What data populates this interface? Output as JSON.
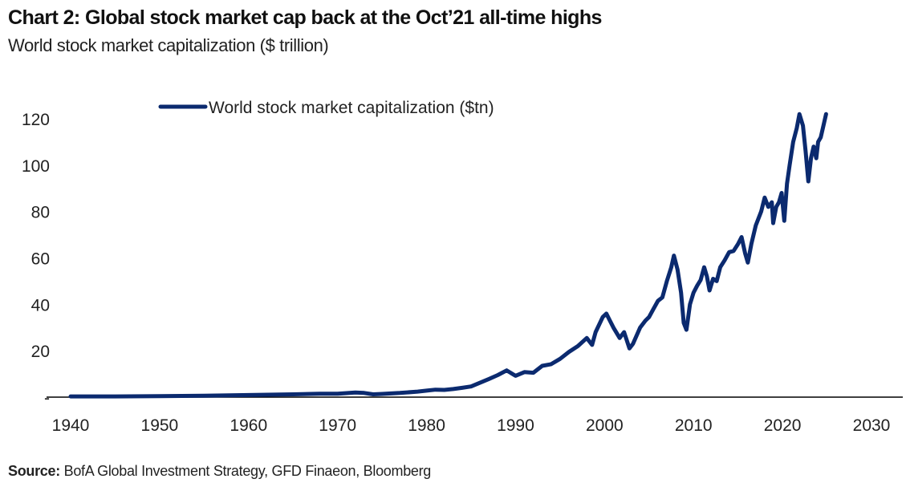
{
  "header": {
    "title": "Chart 2: Global stock market cap back at the Oct’21 all-time highs",
    "subtitle": "World stock market capitalization ($ trillion)"
  },
  "footer": {
    "source_label": "Source:",
    "source_text": " BofA Global Investment Strategy, GFD Finaeon, Bloomberg"
  },
  "chart_data": {
    "type": "line",
    "title": "Chart 2: Global stock market cap back at the Oct’21 all-time highs",
    "subtitle": "World stock market capitalization ($ trillion)",
    "xlabel": "",
    "ylabel": "",
    "xlim": [
      1940,
      2030
    ],
    "ylim": [
      0,
      125
    ],
    "x_ticks": [
      1940,
      1950,
      1960,
      1970,
      1980,
      1990,
      2000,
      2010,
      2020,
      2030
    ],
    "y_ticks": [
      {
        "value": 0,
        "label": "-"
      },
      {
        "value": 20,
        "label": "20"
      },
      {
        "value": 40,
        "label": "40"
      },
      {
        "value": 60,
        "label": "60"
      },
      {
        "value": 80,
        "label": "80"
      },
      {
        "value": 100,
        "label": "100"
      },
      {
        "value": 120,
        "label": "120"
      }
    ],
    "grid": false,
    "legend": {
      "placement": "top-left",
      "entries": [
        "World stock market capitalization ($tn)"
      ]
    },
    "colors": {
      "series": "#0b2a6f",
      "axis": "#000000"
    },
    "series": [
      {
        "name": "World stock market capitalization ($tn)",
        "points": [
          [
            1940,
            0.3
          ],
          [
            1945,
            0.3
          ],
          [
            1950,
            0.4
          ],
          [
            1955,
            0.6
          ],
          [
            1960,
            0.9
          ],
          [
            1965,
            1.2
          ],
          [
            1968,
            1.5
          ],
          [
            1970,
            1.5
          ],
          [
            1972,
            2.0
          ],
          [
            1973,
            1.8
          ],
          [
            1974,
            1.2
          ],
          [
            1975,
            1.4
          ],
          [
            1977,
            1.8
          ],
          [
            1979,
            2.4
          ],
          [
            1980,
            2.8
          ],
          [
            1981,
            3.2
          ],
          [
            1982,
            3.1
          ],
          [
            1983,
            3.5
          ],
          [
            1984,
            4.0
          ],
          [
            1985,
            4.6
          ],
          [
            1986,
            6.2
          ],
          [
            1987,
            7.8
          ],
          [
            1988,
            9.5
          ],
          [
            1989,
            11.5
          ],
          [
            1990,
            9.2
          ],
          [
            1991,
            10.8
          ],
          [
            1992,
            10.5
          ],
          [
            1993,
            13.5
          ],
          [
            1994,
            14.2
          ],
          [
            1995,
            16.5
          ],
          [
            1996,
            19.5
          ],
          [
            1997,
            22.0
          ],
          [
            1998,
            25.5
          ],
          [
            1998.6,
            22.5
          ],
          [
            1999,
            28.0
          ],
          [
            1999.8,
            34.5
          ],
          [
            2000.2,
            36.0
          ],
          [
            2000.6,
            33.0
          ],
          [
            2001,
            30.0
          ],
          [
            2001.7,
            25.5
          ],
          [
            2002.2,
            28.0
          ],
          [
            2002.8,
            21.0
          ],
          [
            2003.2,
            23.0
          ],
          [
            2004,
            30.0
          ],
          [
            2004.6,
            33.0
          ],
          [
            2005,
            34.5
          ],
          [
            2005.5,
            38.0
          ],
          [
            2006,
            41.5
          ],
          [
            2006.5,
            43.0
          ],
          [
            2007,
            50.0
          ],
          [
            2007.5,
            56.0
          ],
          [
            2007.8,
            61.0
          ],
          [
            2008.2,
            55.0
          ],
          [
            2008.6,
            45.0
          ],
          [
            2008.9,
            32.0
          ],
          [
            2009.2,
            29.0
          ],
          [
            2009.6,
            40.0
          ],
          [
            2010,
            45.0
          ],
          [
            2010.4,
            48.0
          ],
          [
            2010.8,
            50.5
          ],
          [
            2011.2,
            56.0
          ],
          [
            2011.5,
            52.0
          ],
          [
            2011.8,
            46.0
          ],
          [
            2012.2,
            51.0
          ],
          [
            2012.6,
            50.0
          ],
          [
            2013,
            56.0
          ],
          [
            2013.5,
            59.0
          ],
          [
            2014,
            62.5
          ],
          [
            2014.5,
            63.0
          ],
          [
            2015,
            66.0
          ],
          [
            2015.4,
            69.0
          ],
          [
            2015.8,
            62.0
          ],
          [
            2016.1,
            58.0
          ],
          [
            2016.5,
            66.0
          ],
          [
            2017,
            74.0
          ],
          [
            2017.6,
            80.0
          ],
          [
            2018,
            86.0
          ],
          [
            2018.4,
            82.0
          ],
          [
            2018.8,
            84.0
          ],
          [
            2018.95,
            75.0
          ],
          [
            2019.3,
            82.0
          ],
          [
            2019.6,
            84.0
          ],
          [
            2019.9,
            88.0
          ],
          [
            2020.2,
            76.0
          ],
          [
            2020.5,
            92.0
          ],
          [
            2020.8,
            100.0
          ],
          [
            2021.2,
            110.0
          ],
          [
            2021.6,
            116.0
          ],
          [
            2021.9,
            122.0
          ],
          [
            2022.3,
            117.0
          ],
          [
            2022.6,
            106.0
          ],
          [
            2022.9,
            93.0
          ],
          [
            2023.2,
            103.0
          ],
          [
            2023.5,
            108.0
          ],
          [
            2023.8,
            103.0
          ],
          [
            2024.0,
            110.0
          ],
          [
            2024.3,
            112.0
          ],
          [
            2024.6,
            117.0
          ],
          [
            2024.9,
            122.0
          ]
        ]
      }
    ]
  }
}
